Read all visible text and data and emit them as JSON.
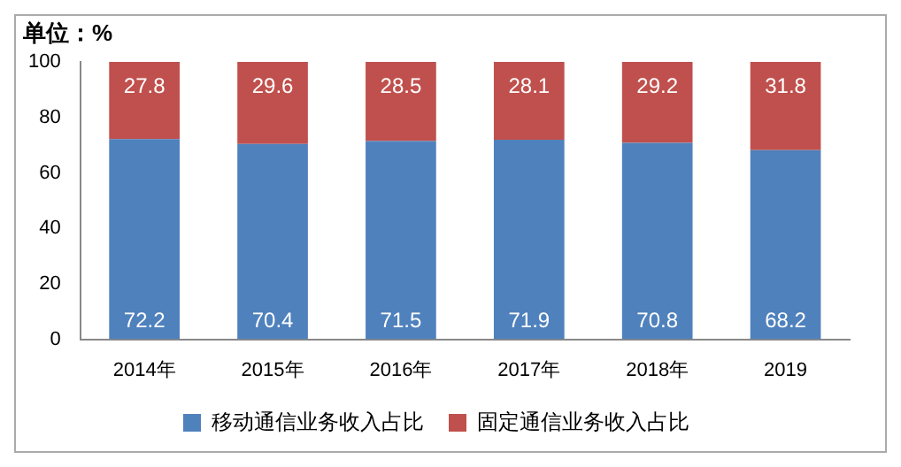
{
  "chart_data": {
    "type": "bar",
    "stacked": true,
    "ylabel": "单位：%",
    "categories": [
      "2014年",
      "2015年",
      "2016年",
      "2017年",
      "2018年",
      "2019"
    ],
    "series": [
      {
        "name": "移动通信业务收入占比",
        "color": "#4f81bd",
        "values": [
          72.2,
          70.4,
          71.5,
          71.9,
          70.8,
          68.2
        ]
      },
      {
        "name": "固定通信业务收入占比",
        "color": "#c0504d",
        "values": [
          27.8,
          29.6,
          28.5,
          28.1,
          29.2,
          31.8
        ]
      }
    ],
    "ylim": [
      0,
      100
    ],
    "yticks": [
      0,
      20,
      40,
      60,
      80,
      100
    ],
    "grid": false,
    "legend": "bottom",
    "data_labels": true
  }
}
